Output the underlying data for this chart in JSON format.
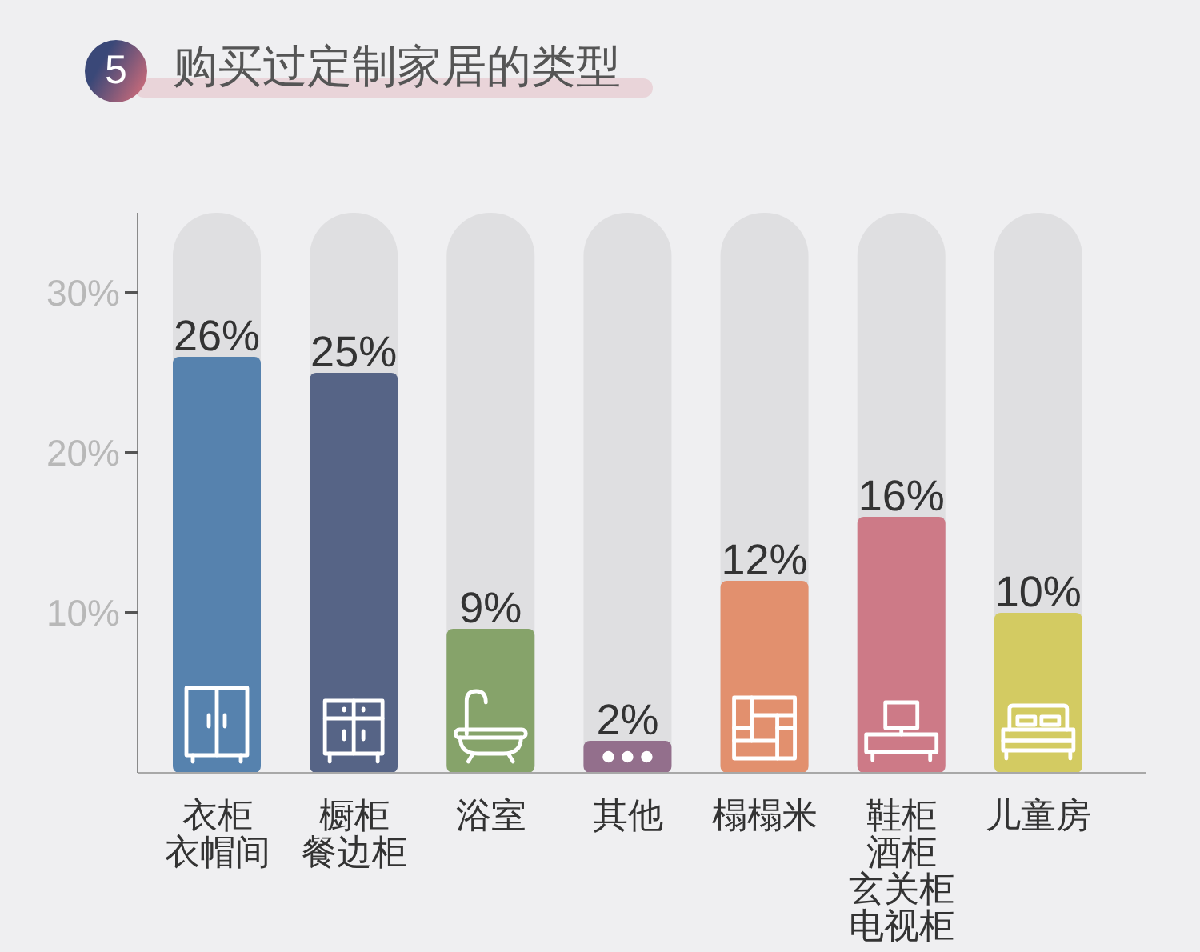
{
  "chart_data": {
    "type": "bar",
    "title": "购买过定制家居的类型",
    "annotations": [
      "5"
    ],
    "categories": [
      "衣柜衣帽间",
      "橱柜餐边柜",
      "浴室",
      "其他",
      "榻榻米",
      "鞋柜酒柜玄关柜电视柜",
      "儿童房"
    ],
    "values": [
      26,
      25,
      9,
      2,
      12,
      16,
      10
    ],
    "value_labels": [
      "26%",
      "25%",
      "9%",
      "2%",
      "12%",
      "16%",
      "10%"
    ],
    "colors": [
      "#5682ae",
      "#566486",
      "#86a36a",
      "#936f8c",
      "#e2906e",
      "#cd7a87",
      "#d3cb62"
    ],
    "ylim": [
      0,
      35
    ],
    "yticks": [
      {
        "value": 10,
        "label": "10%"
      },
      {
        "value": 20,
        "label": "20%"
      },
      {
        "value": 30,
        "label": "30%"
      }
    ]
  }
}
